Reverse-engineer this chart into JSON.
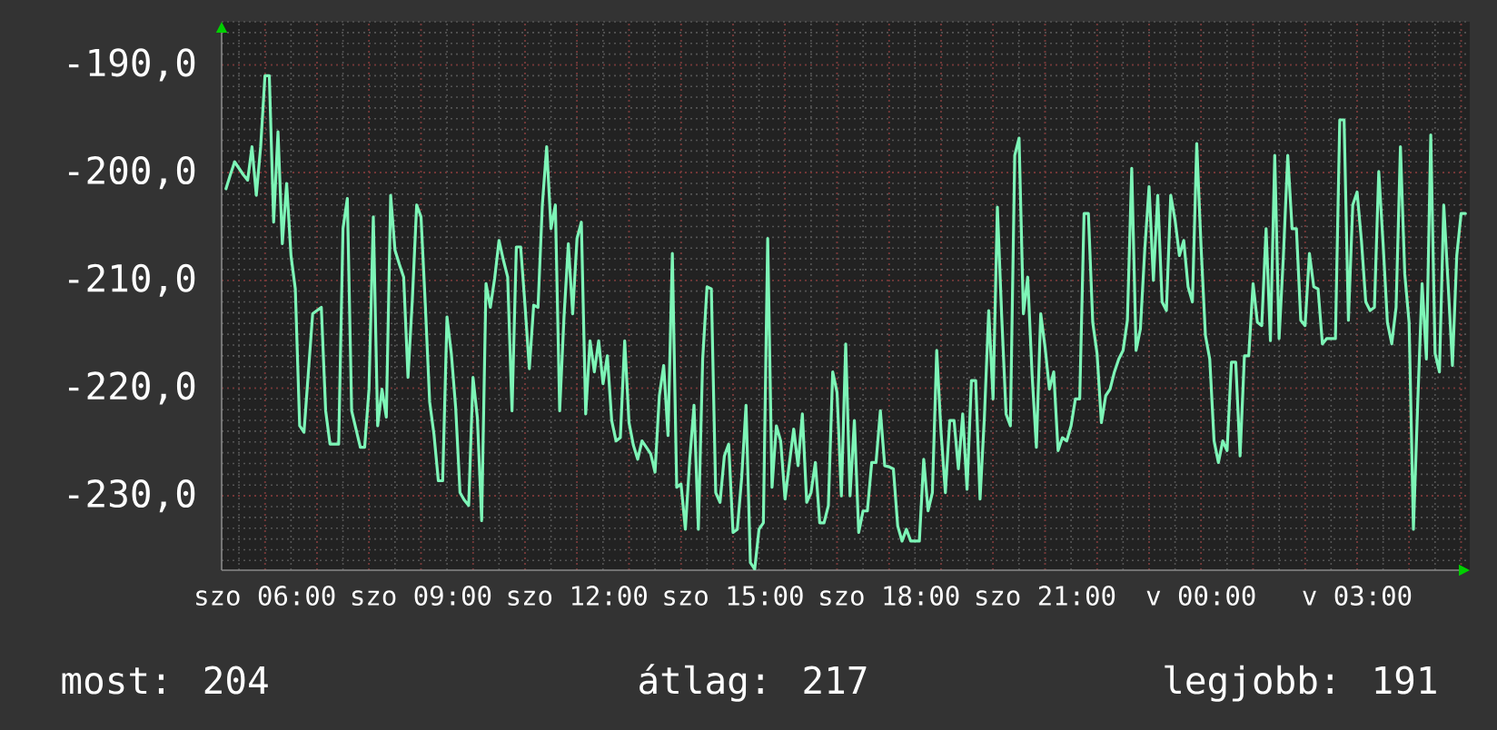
{
  "chart_data": {
    "type": "line",
    "color": "#7df5b7",
    "categories": [
      null,
      null,
      null,
      null,
      null,
      null,
      null,
      null,
      null,
      "szo 06:00",
      null,
      null,
      null,
      null,
      null,
      null,
      null,
      null,
      null,
      null,
      null,
      null,
      null,
      null,
      null,
      null,
      null,
      null,
      null,
      null,
      null,
      null,
      null,
      null,
      null,
      null,
      null,
      null,
      null,
      null,
      null,
      null,
      null,
      null,
      null,
      "szo 09:00",
      null,
      null,
      null,
      null,
      null,
      null,
      null,
      null,
      null,
      null,
      null,
      null,
      null,
      null,
      null,
      null,
      null,
      null,
      null,
      null,
      null,
      null,
      null,
      null,
      null,
      null,
      null,
      null,
      null,
      null,
      null,
      null,
      null,
      null,
      null,
      "szo 12:00",
      null,
      null,
      null,
      null,
      null,
      null,
      null,
      null,
      null,
      null,
      null,
      null,
      null,
      null,
      null,
      null,
      null,
      null,
      null,
      null,
      null,
      null,
      null,
      null,
      null,
      null,
      null,
      null,
      null,
      null,
      null,
      null,
      null,
      null,
      null,
      "szo 15:00",
      null,
      null,
      null,
      null,
      null,
      null,
      null,
      null,
      null,
      null,
      null,
      null,
      null,
      null,
      null,
      null,
      null,
      null,
      null,
      null,
      null,
      null,
      null,
      null,
      null,
      null,
      null,
      null,
      null,
      null,
      null,
      null,
      null,
      null,
      null,
      "szo 18:00",
      null,
      null,
      null,
      null,
      null,
      null,
      null,
      null,
      null,
      null,
      null,
      null,
      null,
      null,
      null,
      null,
      null,
      null,
      null,
      null,
      null,
      null,
      null,
      null,
      null,
      null,
      null,
      null,
      null,
      null,
      null,
      null,
      null,
      null,
      null,
      "szo 21:00",
      null,
      null,
      null,
      null,
      null,
      null,
      null,
      null,
      null,
      null,
      null,
      null,
      null,
      null,
      null,
      null,
      null,
      null,
      null,
      null,
      null,
      null,
      null,
      null,
      null,
      null,
      null,
      null,
      null,
      null,
      null,
      null,
      null,
      null,
      null,
      "v 00:00",
      null,
      null,
      null,
      null,
      null,
      null,
      null,
      null,
      null,
      null,
      null,
      null,
      null,
      null,
      null,
      null,
      null,
      null,
      null,
      null,
      null,
      null,
      null,
      null,
      null,
      null,
      null,
      null,
      null,
      null,
      null,
      null,
      null,
      null,
      null,
      "v 03:00",
      null,
      null,
      null,
      null,
      null,
      null,
      null,
      null,
      null,
      null,
      null,
      null,
      null,
      null,
      null,
      null,
      null,
      null,
      null,
      null,
      null,
      null,
      null,
      null,
      null
    ],
    "values": [
      -201.5,
      -200.2,
      -199.0,
      -199.6,
      -200.2,
      -200.7,
      -197.6,
      -202.1,
      -197.6,
      -191.0,
      -191.0,
      -204.6,
      -196.2,
      -206.6,
      -201.0,
      -207.7,
      -210.8,
      -223.5,
      -224.1,
      -218.6,
      -213.1,
      -212.8,
      -212.5,
      -222.1,
      -225.2,
      -225.2,
      -225.2,
      -205.2,
      -202.4,
      -222.1,
      -223.8,
      -225.5,
      -225.5,
      -220.1,
      -204.1,
      -223.5,
      -220.1,
      -222.7,
      -202.1,
      -207.2,
      -208.5,
      -209.7,
      -219.0,
      -211.8,
      -203.0,
      -204.1,
      -212.3,
      -221.3,
      -224.3,
      -228.6,
      -228.6,
      -213.4,
      -216.8,
      -221.8,
      -229.7,
      -230.4,
      -230.9,
      -219.0,
      -222.7,
      -232.3,
      -210.3,
      -212.5,
      -209.8,
      -206.3,
      -208.1,
      -209.7,
      -222.1,
      -206.9,
      -206.9,
      -212.3,
      -218.2,
      -212.3,
      -212.5,
      -203.0,
      -197.6,
      -205.2,
      -203.0,
      -222.1,
      -213.4,
      -206.6,
      -213.1,
      -206.1,
      -204.6,
      -222.4,
      -215.6,
      -218.5,
      -215.6,
      -219.6,
      -217.0,
      -223.0,
      -224.9,
      -224.6,
      -215.6,
      -223.2,
      -225.3,
      -226.6,
      -224.9,
      -225.5,
      -226.1,
      -227.8,
      -220.7,
      -217.9,
      -224.4,
      -207.5,
      -229.2,
      -228.9,
      -233.1,
      -226.7,
      -221.6,
      -233.1,
      -217.3,
      -210.6,
      -210.8,
      -229.7,
      -230.6,
      -226.3,
      -225.2,
      -233.4,
      -233.1,
      -228.3,
      -221.6,
      -236.2,
      -236.8,
      -233.1,
      -232.5,
      -206.1,
      -229.2,
      -223.5,
      -224.9,
      -230.3,
      -227.0,
      -223.8,
      -227.2,
      -222.4,
      -230.6,
      -229.7,
      -226.9,
      -232.5,
      -232.5,
      -230.9,
      -218.5,
      -220.4,
      -230.0,
      -215.9,
      -230.0,
      -223.0,
      -233.4,
      -231.4,
      -231.4,
      -226.9,
      -226.9,
      -222.1,
      -227.2,
      -227.3,
      -227.5,
      -232.8,
      -234.2,
      -233.1,
      -234.2,
      -234.2,
      -234.2,
      -226.6,
      -231.4,
      -229.7,
      -216.5,
      -224.1,
      -229.7,
      -223.0,
      -223.0,
      -227.5,
      -222.4,
      -229.4,
      -219.3,
      -219.3,
      -230.3,
      -222.7,
      -212.8,
      -221.0,
      -203.2,
      -213.4,
      -222.4,
      -223.5,
      -198.4,
      -196.8,
      -213.1,
      -209.7,
      -218.7,
      -225.5,
      -213.1,
      -216.2,
      -220.1,
      -218.5,
      -225.8,
      -224.6,
      -224.9,
      -223.5,
      -221.0,
      -221.0,
      -203.8,
      -203.8,
      -213.9,
      -216.8,
      -223.2,
      -220.7,
      -220.1,
      -218.5,
      -217.3,
      -216.5,
      -213.7,
      -199.6,
      -216.5,
      -214.5,
      -207.2,
      -201.3,
      -210.0,
      -202.1,
      -212.0,
      -212.8,
      -202.1,
      -204.4,
      -207.7,
      -206.3,
      -210.6,
      -212.0,
      -197.3,
      -206.9,
      -215.1,
      -217.3,
      -224.9,
      -226.9,
      -224.9,
      -225.8,
      -217.6,
      -217.6,
      -226.3,
      -217.0,
      -217.0,
      -210.3,
      -213.9,
      -214.2,
      -205.2,
      -215.6,
      -198.4,
      -215.4,
      -207.7,
      -198.4,
      -205.2,
      -205.2,
      -213.7,
      -214.2,
      -207.5,
      -210.6,
      -210.8,
      -215.9,
      -215.4,
      -215.4,
      -215.4,
      -195.1,
      -195.1,
      -213.7,
      -203.0,
      -201.8,
      -206.3,
      -212.0,
      -212.8,
      -212.5,
      -199.9,
      -206.6,
      -213.9,
      -215.9,
      -212.5,
      -197.6,
      -209.4,
      -213.9,
      -233.1,
      -221.3,
      -210.3,
      -217.3,
      -196.5,
      -216.8,
      -218.5,
      -203.0,
      -210.3,
      -217.9,
      -207.7,
      -203.8,
      -203.8
    ],
    "ylim": [
      -236.9,
      -186.0
    ],
    "yticks": [
      {
        "value": -230,
        "label": "-230,0"
      },
      {
        "value": -220,
        "label": "-220,0"
      },
      {
        "value": -210,
        "label": "-210,0"
      },
      {
        "value": -200,
        "label": "-200,0"
      },
      {
        "value": -190,
        "label": "-190,0"
      }
    ],
    "grid": true,
    "annotations": [
      "most: 204",
      "átlag: 217",
      "legjobb: 191"
    ]
  }
}
